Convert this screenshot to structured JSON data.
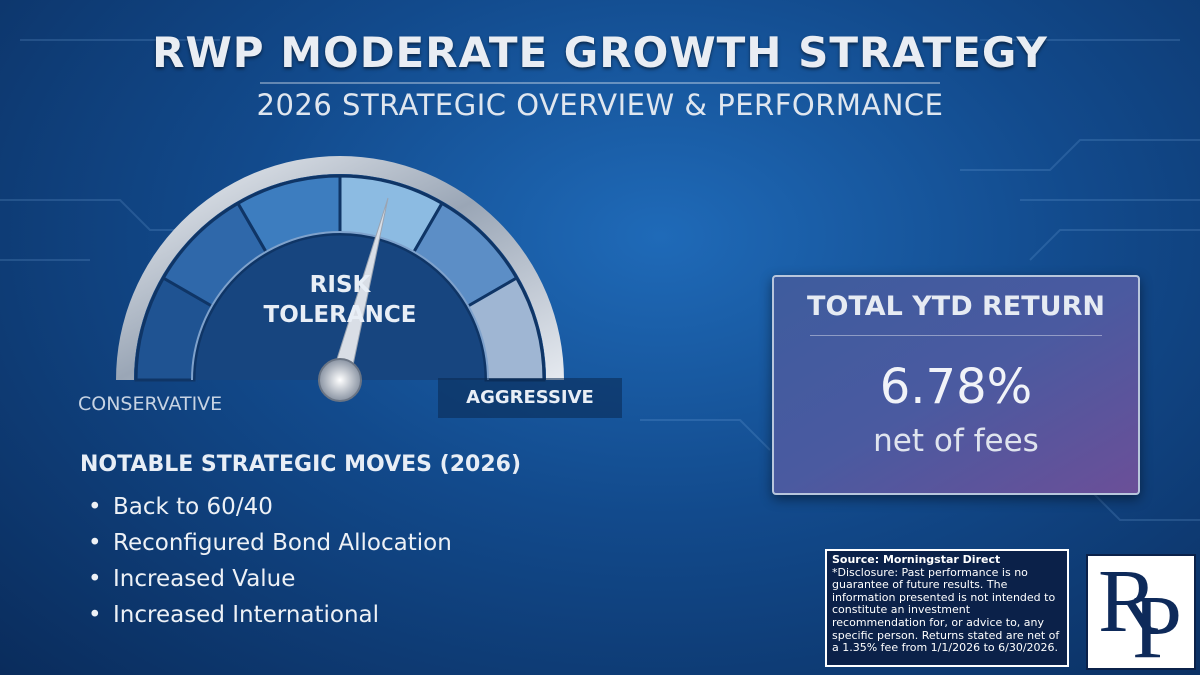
{
  "header": {
    "title": "RWP MODERATE GROWTH STRATEGY",
    "subtitle": "2026 STRATEGIC OVERVIEW & PERFORMANCE"
  },
  "gauge": {
    "label_lines": [
      "RISK",
      "TOLERANCE"
    ],
    "low_label": "CONSERVATIVE",
    "high_label": "AGGRESSIVE"
  },
  "moves": {
    "heading": "NOTABLE STRATEGIC MOVES (2026)",
    "items": [
      "Back to 60/40",
      "Reconfigured Bond Allocation",
      "Increased Value",
      "Increased International"
    ]
  },
  "return_box": {
    "title": "TOTAL YTD RETURN",
    "value": "6.78%",
    "note": "net of fees"
  },
  "disclosure": {
    "source": "Source: Morningstar Direct",
    "text": "*Disclosure: Past performance is no guarantee of future results. The information presented is not intended to constitute an investment recommendation for, or advice to, any specific person. Returns stated are net of a 1.35% fee from 1/1/2026 to 6/30/2026."
  },
  "logo": {
    "letters": [
      "R",
      "P"
    ]
  }
}
